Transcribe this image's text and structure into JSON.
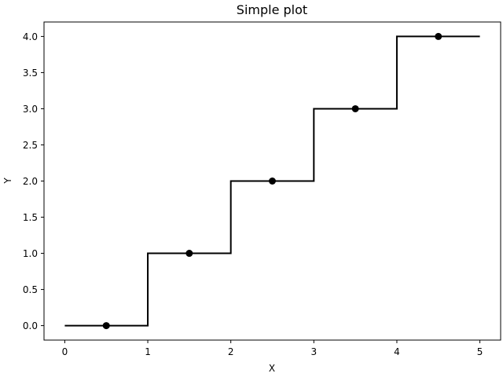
{
  "chart_data": {
    "type": "line",
    "title": "Simple plot",
    "xlabel": "X",
    "ylabel": "Y",
    "xlim": [
      -0.25,
      5.25
    ],
    "ylim": [
      -0.2,
      4.2
    ],
    "x_ticks": [
      0,
      1,
      2,
      3,
      4,
      5
    ],
    "x_tick_labels": [
      "0",
      "1",
      "2",
      "3",
      "4",
      "5"
    ],
    "y_ticks": [
      0.0,
      0.5,
      1.0,
      1.5,
      2.0,
      2.5,
      3.0,
      3.5,
      4.0
    ],
    "y_tick_labels": [
      "0.0",
      "0.5",
      "1.0",
      "1.5",
      "2.0",
      "2.5",
      "3.0",
      "3.5",
      "4.0"
    ],
    "grid": false,
    "series": [
      {
        "style": "step",
        "color": "#000000",
        "x": [
          0,
          1,
          1,
          2,
          2,
          3,
          3,
          4,
          4,
          5
        ],
        "y": [
          0,
          0,
          1,
          1,
          2,
          2,
          3,
          3,
          4,
          4
        ]
      },
      {
        "style": "scatter",
        "color": "#000000",
        "x": [
          0.5,
          1.5,
          2.5,
          3.5,
          4.5
        ],
        "y": [
          0,
          1,
          2,
          3,
          4
        ]
      }
    ]
  }
}
